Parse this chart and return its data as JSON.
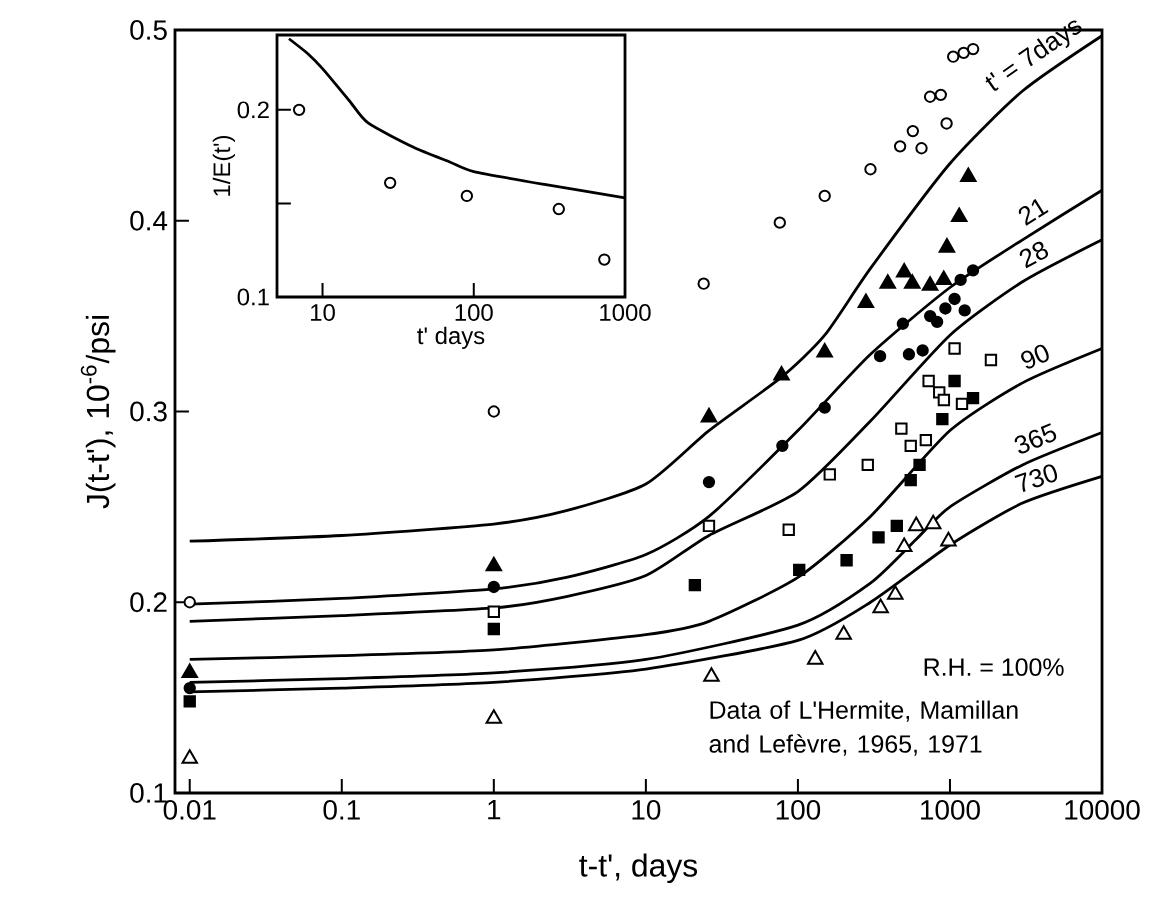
{
  "chart_data": [
    {
      "type": "scatter",
      "xlabel": "t-t', days",
      "ylabel": "J(t-t'),  10$^{-6}$/psi",
      "log": "x",
      "xlim": [
        0.008,
        10000
      ],
      "ylim": [
        0.1,
        0.5
      ],
      "xticks": [
        0.01,
        0.1,
        1,
        10,
        100,
        1000,
        10000
      ],
      "yticks": [
        0.1,
        0.2,
        0.3,
        0.4,
        0.5
      ],
      "annotations": [
        "R.H. = 100%",
        "Data of L'Hermite, Mamillan and Lefèvre, 1965, 1971"
      ],
      "series": [
        {
          "marker": "circle",
          "color": "#ffffff",
          "x": [
            0.01,
            1,
            24,
            76,
            150,
            300,
            470,
            650,
            570,
            950,
            740,
            870,
            1050,
            1230,
            1420
          ],
          "values": [
            0.2,
            0.3,
            0.367,
            0.399,
            0.413,
            0.427,
            0.439,
            0.438,
            0.447,
            0.451,
            0.465,
            0.466,
            0.486,
            0.488,
            0.49
          ]
        },
        {
          "marker": "triangle",
          "color": "#000000",
          "x": [
            0.01,
            1,
            26,
            78,
            150,
            280,
            390,
            500,
            565,
            740,
            910,
            955,
            1150,
            1320
          ],
          "values": [
            0.163,
            0.219,
            0.297,
            0.319,
            0.331,
            0.357,
            0.367,
            0.373,
            0.367,
            0.366,
            0.369,
            0.386,
            0.402,
            0.423
          ]
        },
        {
          "marker": "circle",
          "color": "#000000",
          "x": [
            0.01,
            1,
            26,
            79,
            150,
            347,
            537,
            661,
            490,
            741,
            823,
            933,
            1072,
            1250,
            1175,
            1418
          ],
          "values": [
            0.155,
            0.208,
            0.263,
            0.282,
            0.302,
            0.329,
            0.33,
            0.332,
            0.346,
            0.35,
            0.347,
            0.354,
            0.359,
            0.353,
            0.369,
            0.374
          ]
        },
        {
          "marker": "square",
          "color": "#ffffff",
          "x": [
            1,
            26,
            87,
            162,
            288,
            552,
            694,
            479,
            724,
            850,
            912,
            1200,
            1072,
            1860
          ],
          "values": [
            0.195,
            0.24,
            0.238,
            0.267,
            0.272,
            0.282,
            0.285,
            0.291,
            0.316,
            0.31,
            0.306,
            0.304,
            0.333,
            0.327
          ]
        },
        {
          "marker": "square",
          "color": "#000000",
          "x": [
            0.01,
            1,
            21,
            102,
            209,
            339,
            447,
            552,
            631,
            891,
            1072,
            1418
          ],
          "values": [
            0.148,
            0.186,
            0.209,
            0.217,
            0.222,
            0.234,
            0.24,
            0.264,
            0.272,
            0.296,
            0.316,
            0.307
          ]
        },
        {
          "marker": "triangle",
          "color": "#ffffff",
          "x": [
            0.01,
            1,
            27,
            130,
            200,
            350,
            437,
            500,
            600,
            776,
            977
          ],
          "values": [
            0.118,
            0.139,
            0.161,
            0.17,
            0.183,
            0.197,
            0.204,
            0.229,
            0.24,
            0.241,
            0.232
          ]
        },
        {
          "type": "line",
          "name": "t' = 7days",
          "color": "#000000",
          "x": [
            0.01,
            0.1,
            1,
            3,
            10,
            26,
            78,
            150,
            300,
            1000,
            3000,
            10000
          ],
          "values": [
            0.232,
            0.235,
            0.241,
            0.248,
            0.262,
            0.29,
            0.318,
            0.34,
            0.375,
            0.43,
            0.468,
            0.497
          ]
        },
        {
          "type": "line",
          "name": "21",
          "color": "#000000",
          "x": [
            0.01,
            0.1,
            1,
            3,
            10,
            26,
            100,
            300,
            1000,
            3000,
            10000
          ],
          "values": [
            0.199,
            0.202,
            0.207,
            0.213,
            0.225,
            0.245,
            0.29,
            0.33,
            0.365,
            0.39,
            0.416
          ]
        },
        {
          "type": "line",
          "name": "28",
          "color": "#000000",
          "x": [
            0.01,
            0.1,
            1,
            3,
            10,
            26,
            100,
            300,
            1000,
            3000,
            10000
          ],
          "values": [
            0.19,
            0.193,
            0.197,
            0.203,
            0.214,
            0.235,
            0.258,
            0.295,
            0.34,
            0.368,
            0.39
          ]
        },
        {
          "type": "line",
          "name": "90",
          "color": "#000000",
          "x": [
            0.01,
            0.1,
            1,
            10,
            26,
            100,
            300,
            1000,
            3000,
            10000
          ],
          "values": [
            0.17,
            0.172,
            0.175,
            0.183,
            0.19,
            0.213,
            0.245,
            0.29,
            0.315,
            0.333
          ]
        },
        {
          "type": "line",
          "name": "365",
          "color": "#000000",
          "x": [
            0.01,
            0.1,
            1,
            10,
            100,
            300,
            600,
            1000,
            3000,
            10000
          ],
          "values": [
            0.158,
            0.16,
            0.163,
            0.17,
            0.188,
            0.21,
            0.233,
            0.25,
            0.272,
            0.289
          ]
        },
        {
          "type": "line",
          "name": "730",
          "color": "#000000",
          "x": [
            0.01,
            0.1,
            1,
            10,
            100,
            300,
            1000,
            3000,
            10000
          ],
          "values": [
            0.153,
            0.155,
            0.158,
            0.165,
            0.18,
            0.2,
            0.23,
            0.252,
            0.266
          ]
        }
      ]
    },
    {
      "type": "scatter",
      "xlabel": "t' days",
      "ylabel": "1/E(t')",
      "log": "x",
      "xlim": [
        5,
        1000
      ],
      "ylim": [
        0.1,
        0.24
      ],
      "xticks": [
        10,
        100,
        1000
      ],
      "yticks": [
        0.1,
        {
          "value": 0.15,
          "label": null
        },
        0.2
      ],
      "series": [
        {
          "marker": "circle",
          "color": "#ffffff",
          "x": [
            7,
            28,
            90,
            365,
            730
          ],
          "values": [
            0.2,
            0.161,
            0.154,
            0.147,
            0.12
          ]
        },
        {
          "type": "line",
          "color": "#000000",
          "x": [
            6,
            8,
            10,
            15,
            20,
            40,
            70,
            100,
            300,
            1000
          ],
          "values": [
            0.238,
            0.23,
            0.222,
            0.205,
            0.193,
            0.18,
            0.172,
            0.167,
            0.16,
            0.153
          ]
        }
      ]
    }
  ]
}
